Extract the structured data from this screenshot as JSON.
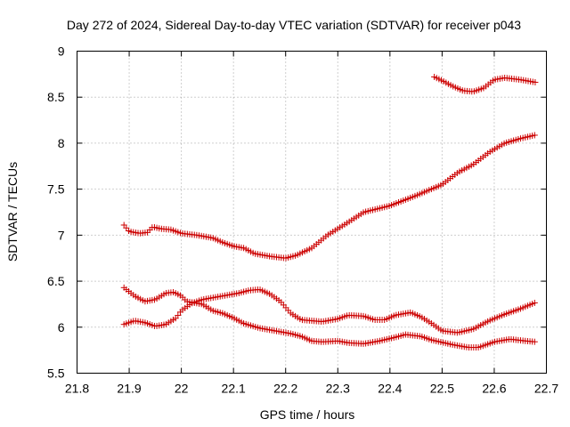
{
  "chart_data": {
    "type": "scatter",
    "title": "Day 272 of 2024, Sidereal Day-to-day VTEC variation (SDTVAR) for receiver p043",
    "xlabel": "GPS time / hours",
    "ylabel": "SDTVAR / TECUs",
    "xlim": [
      21.8,
      22.7
    ],
    "ylim": [
      5.5,
      9.0
    ],
    "xticks": [
      "21.8",
      "21.9",
      "22",
      "22.1",
      "22.2",
      "22.3",
      "22.4",
      "22.5",
      "22.6",
      "22.7"
    ],
    "yticks": [
      "5.5",
      "6",
      "6.5",
      "7",
      "7.5",
      "8",
      "8.5",
      "9"
    ],
    "grid": true,
    "marker": "+",
    "color": "#cc0000",
    "series": [
      {
        "name": "series-1",
        "knots": [
          [
            21.89,
            7.11
          ],
          [
            21.9,
            7.04
          ],
          [
            21.92,
            7.02
          ],
          [
            21.935,
            7.03
          ],
          [
            21.945,
            7.09
          ],
          [
            21.96,
            7.07
          ],
          [
            21.98,
            7.06
          ],
          [
            22.0,
            7.02
          ],
          [
            22.03,
            7.0
          ],
          [
            22.06,
            6.97
          ],
          [
            22.08,
            6.92
          ],
          [
            22.1,
            6.88
          ],
          [
            22.12,
            6.86
          ],
          [
            22.14,
            6.8
          ],
          [
            22.17,
            6.77
          ],
          [
            22.2,
            6.75
          ],
          [
            22.22,
            6.78
          ],
          [
            22.25,
            6.86
          ],
          [
            22.28,
            7.0
          ],
          [
            22.32,
            7.14
          ],
          [
            22.35,
            7.25
          ],
          [
            22.4,
            7.32
          ],
          [
            22.45,
            7.43
          ],
          [
            22.5,
            7.55
          ],
          [
            22.53,
            7.68
          ],
          [
            22.56,
            7.77
          ],
          [
            22.59,
            7.9
          ],
          [
            22.62,
            8.0
          ],
          [
            22.65,
            8.05
          ],
          [
            22.68,
            8.09
          ]
        ],
        "step": 0.0045
      },
      {
        "name": "series-2",
        "knots": [
          [
            22.485,
            8.72
          ],
          [
            22.5,
            8.68
          ],
          [
            22.52,
            8.62
          ],
          [
            22.54,
            8.57
          ],
          [
            22.56,
            8.56
          ],
          [
            22.58,
            8.6
          ],
          [
            22.6,
            8.69
          ],
          [
            22.62,
            8.71
          ],
          [
            22.65,
            8.69
          ],
          [
            22.68,
            8.66
          ]
        ],
        "step": 0.0045
      },
      {
        "name": "series-3",
        "knots": [
          [
            21.89,
            6.43
          ],
          [
            21.91,
            6.34
          ],
          [
            21.93,
            6.28
          ],
          [
            21.95,
            6.3
          ],
          [
            21.97,
            6.37
          ],
          [
            21.985,
            6.38
          ],
          [
            22.0,
            6.34
          ],
          [
            22.01,
            6.28
          ],
          [
            22.04,
            6.25
          ],
          [
            22.06,
            6.18
          ],
          [
            22.08,
            6.15
          ],
          [
            22.1,
            6.1
          ],
          [
            22.12,
            6.04
          ],
          [
            22.15,
            5.99
          ],
          [
            22.18,
            5.96
          ],
          [
            22.21,
            5.93
          ],
          [
            22.23,
            5.9
          ],
          [
            22.25,
            5.85
          ],
          [
            22.27,
            5.84
          ],
          [
            22.3,
            5.85
          ],
          [
            22.32,
            5.83
          ],
          [
            22.35,
            5.82
          ],
          [
            22.38,
            5.85
          ],
          [
            22.41,
            5.89
          ],
          [
            22.43,
            5.92
          ],
          [
            22.46,
            5.9
          ],
          [
            22.48,
            5.86
          ],
          [
            22.52,
            5.81
          ],
          [
            22.55,
            5.78
          ],
          [
            22.57,
            5.78
          ],
          [
            22.6,
            5.84
          ],
          [
            22.63,
            5.87
          ],
          [
            22.66,
            5.85
          ],
          [
            22.68,
            5.84
          ]
        ],
        "step": 0.0045
      },
      {
        "name": "series-4",
        "knots": [
          [
            21.89,
            6.03
          ],
          [
            21.91,
            6.07
          ],
          [
            21.93,
            6.05
          ],
          [
            21.95,
            6.01
          ],
          [
            21.97,
            6.03
          ],
          [
            21.99,
            6.1
          ],
          [
            22.0,
            6.18
          ],
          [
            22.02,
            6.26
          ],
          [
            22.04,
            6.3
          ],
          [
            22.06,
            6.32
          ],
          [
            22.08,
            6.34
          ],
          [
            22.11,
            6.37
          ],
          [
            22.13,
            6.4
          ],
          [
            22.15,
            6.41
          ],
          [
            22.17,
            6.36
          ],
          [
            22.19,
            6.28
          ],
          [
            22.21,
            6.15
          ],
          [
            22.23,
            6.08
          ],
          [
            22.25,
            6.07
          ],
          [
            22.27,
            6.06
          ],
          [
            22.3,
            6.09
          ],
          [
            22.32,
            6.13
          ],
          [
            22.35,
            6.12
          ],
          [
            22.37,
            6.08
          ],
          [
            22.39,
            6.08
          ],
          [
            22.41,
            6.13
          ],
          [
            22.44,
            6.16
          ],
          [
            22.46,
            6.11
          ],
          [
            22.48,
            6.04
          ],
          [
            22.5,
            5.96
          ],
          [
            22.53,
            5.94
          ],
          [
            22.56,
            5.98
          ],
          [
            22.59,
            6.07
          ],
          [
            22.62,
            6.14
          ],
          [
            22.65,
            6.2
          ],
          [
            22.68,
            6.27
          ]
        ],
        "step": 0.0045
      }
    ]
  }
}
